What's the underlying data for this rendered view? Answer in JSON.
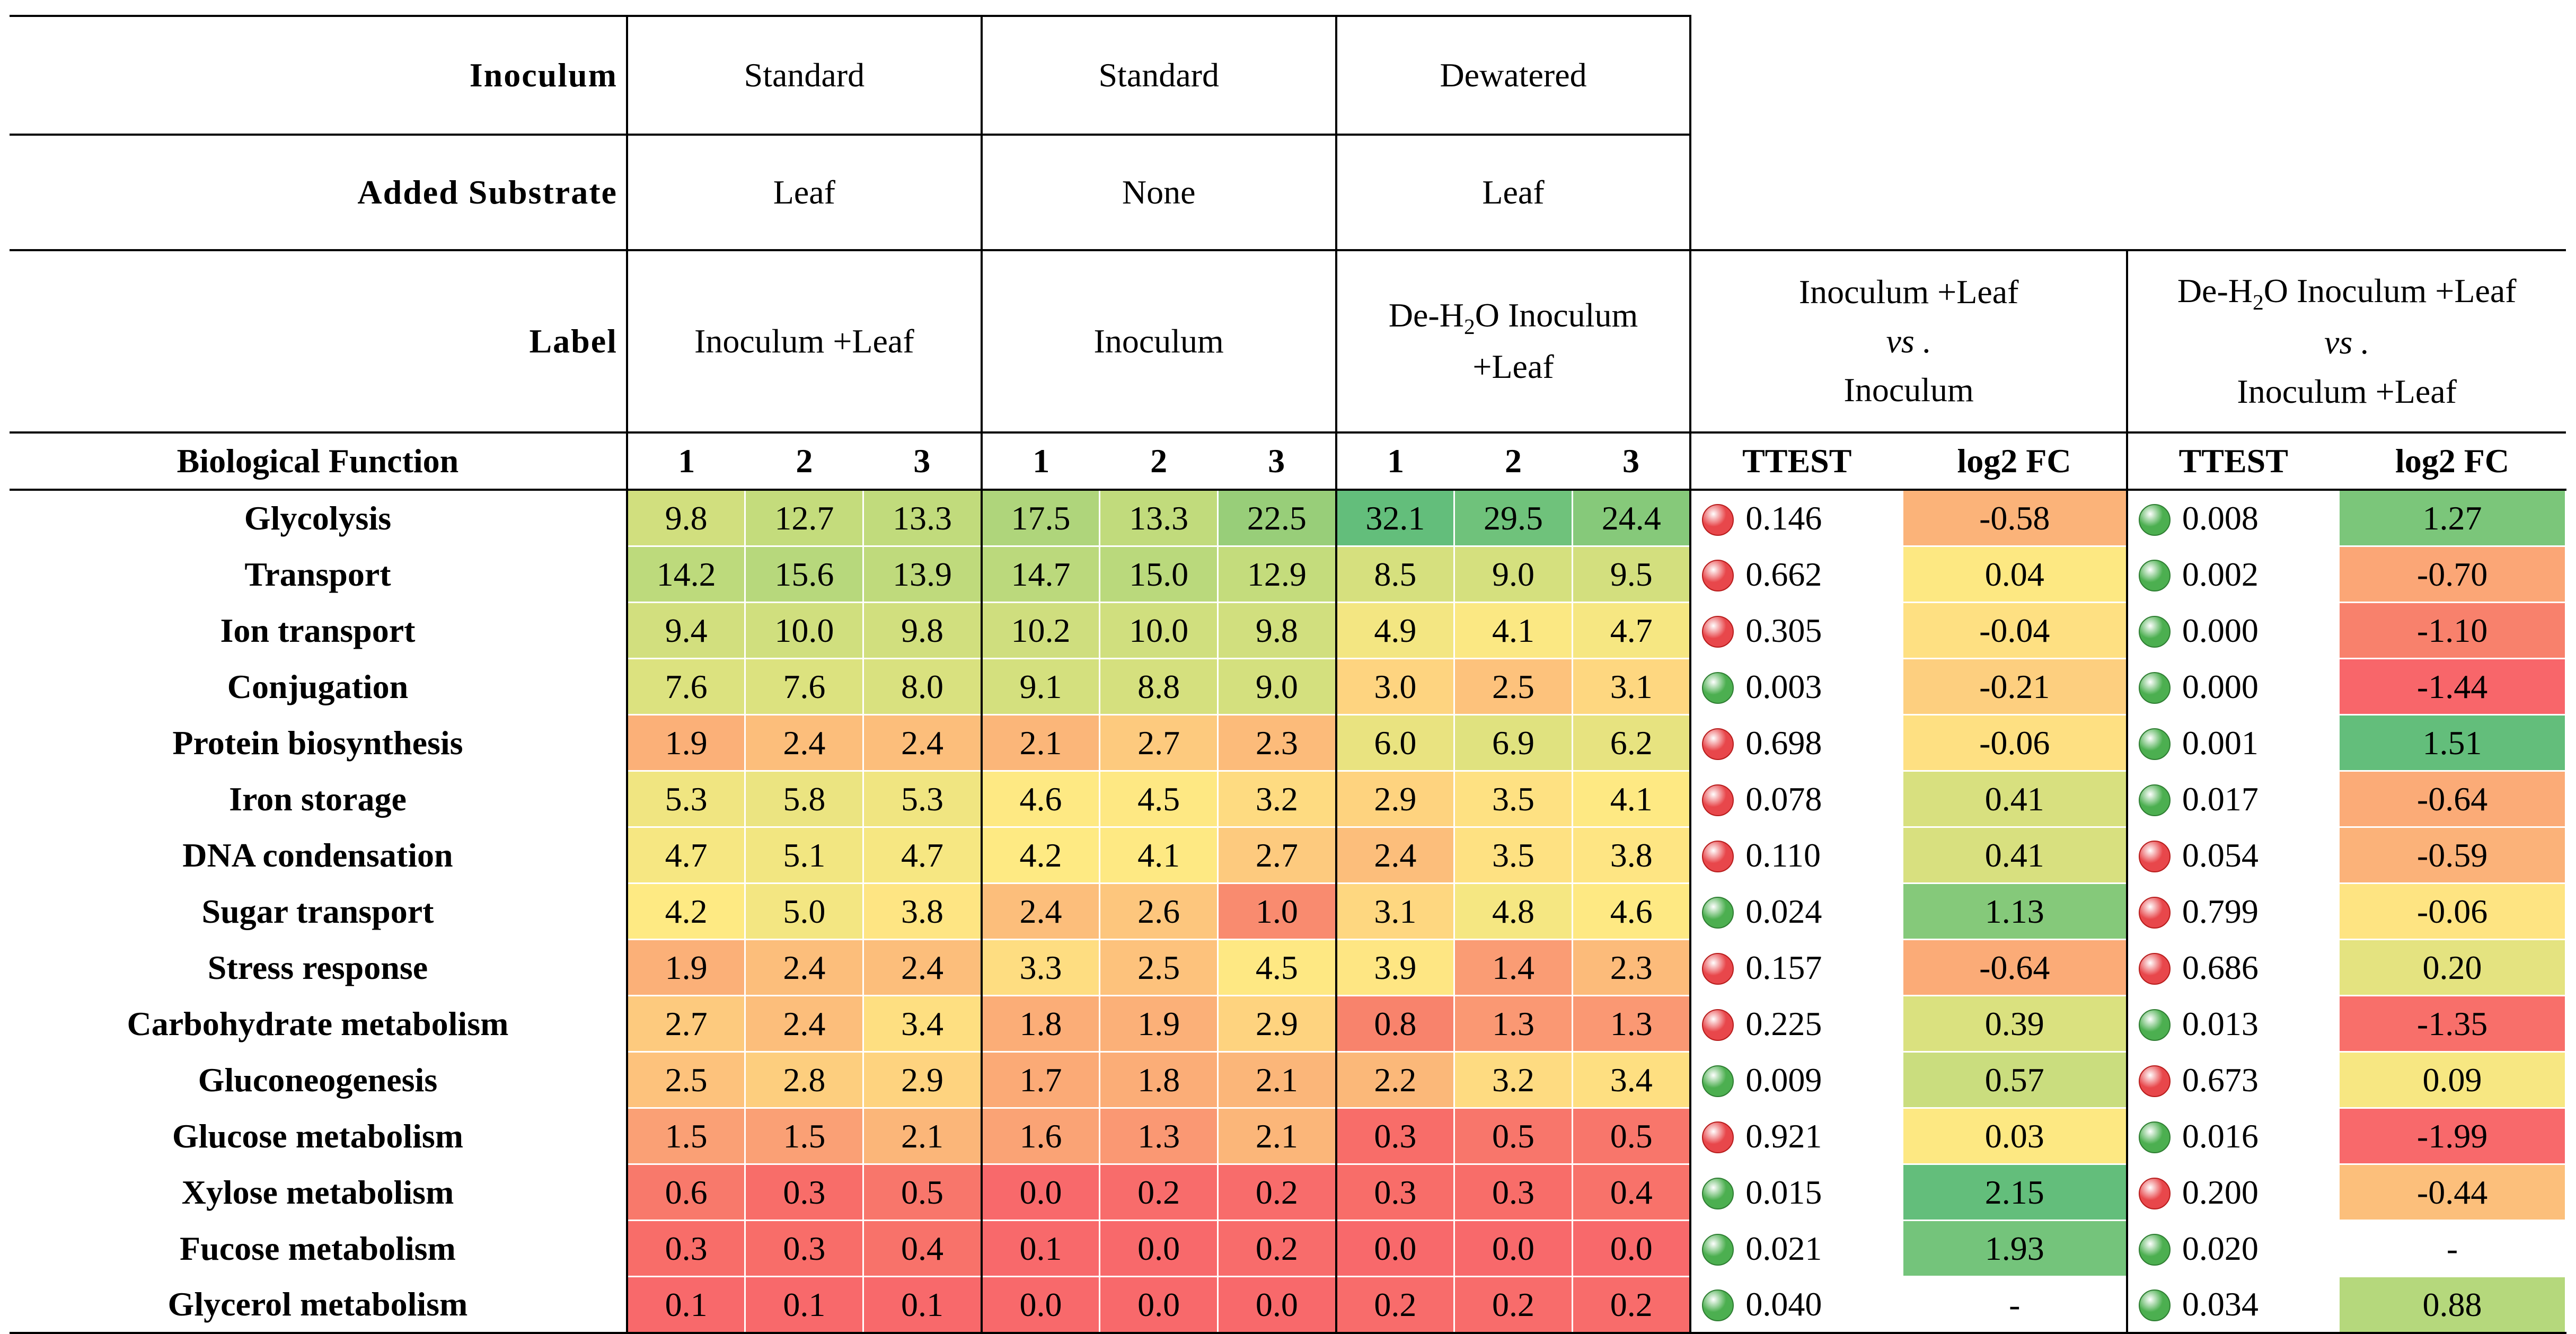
{
  "header": {
    "inoculum_label": "Inoculum",
    "inoculum": [
      "Standard",
      "Standard",
      "Dewatered"
    ],
    "substrate_label": "Added Substrate",
    "substrate": [
      "Leaf",
      "None",
      "Leaf"
    ],
    "label_label": "Label",
    "labels": [
      "Inoculum +Leaf",
      "Inoculum",
      "De-H2O Inoculum +Leaf"
    ],
    "comp1": {
      "line1": "Inoculum +Leaf",
      "vs": "vs .",
      "line2": "Inoculum"
    },
    "comp2": {
      "line1": "De-H2O Inoculum +Leaf",
      "vs": "vs .",
      "line2": "Inoculum +Leaf"
    },
    "biofunc_label": "Biological Function",
    "reps": [
      "1",
      "2",
      "3"
    ],
    "ttest_label": "TTEST",
    "log2fc_label": "log2 FC"
  },
  "colors": {
    "green_dot": "#4caf50",
    "red_dot": "#e8474b"
  },
  "rows": [
    {
      "name": "Glycolysis",
      "values": [
        "9.8",
        "12.7",
        "13.3",
        "17.5",
        "13.3",
        "22.5",
        "32.1",
        "29.5",
        "24.4"
      ],
      "colors": [
        "#d1df7e",
        "#c4dc7c",
        "#c1db7c",
        "#afd57b",
        "#c1db7c",
        "#98ce79",
        "#63be7b",
        "#6fc27b",
        "#86c97a"
      ],
      "t1": "0.146",
      "s1": "red",
      "fc1": "-0.58",
      "fc1c": "#fbb379",
      "t2": "0.008",
      "s2": "green",
      "fc2": "1.27",
      "fc2c": "#7bc67a"
    },
    {
      "name": "Transport",
      "values": [
        "14.2",
        "15.6",
        "13.9",
        "14.7",
        "15.0",
        "12.9",
        "8.5",
        "9.0",
        "9.5"
      ],
      "colors": [
        "#bdda7c",
        "#b7d87c",
        "#bfda7c",
        "#bbd97c",
        "#bad97c",
        "#c4dc7c",
        "#d6e07e",
        "#d5e07e",
        "#d3df7e"
      ],
      "t1": "0.662",
      "s1": "red",
      "fc1": "0.04",
      "fc1c": "#fde882",
      "t2": "0.002",
      "s2": "green",
      "fc2": "-0.70",
      "fc2c": "#fba676"
    },
    {
      "name": "Ion transport",
      "values": [
        "9.4",
        "10.0",
        "9.8",
        "10.2",
        "10.0",
        "9.8",
        "4.9",
        "4.1",
        "4.7"
      ],
      "colors": [
        "#d2df7e",
        "#d0df7e",
        "#d1df7e",
        "#cfde7e",
        "#d0df7e",
        "#d1df7e",
        "#f3e682",
        "#fbe883",
        "#f6e782"
      ],
      "t1": "0.305",
      "s1": "red",
      "fc1": "-0.04",
      "fc1c": "#fee082",
      "t2": "0.000",
      "s2": "green",
      "fc2": "-1.10",
      "fc2c": "#f8816c"
    },
    {
      "name": "Conjugation",
      "values": [
        "7.6",
        "7.6",
        "8.0",
        "9.1",
        "8.8",
        "9.0",
        "3.0",
        "2.5",
        "3.1"
      ],
      "colors": [
        "#dce27f",
        "#dce27f",
        "#d9e17f",
        "#d4e07e",
        "#d5e07e",
        "#d4e07e",
        "#fed480",
        "#fdc27c",
        "#fed780"
      ],
      "t1": "0.003",
      "s1": "green",
      "fc1": "-0.21",
      "fc1c": "#fdcf7f",
      "t2": "0.000",
      "s2": "green",
      "fc2": "-1.44",
      "fc2c": "#f8666a"
    },
    {
      "name": "Protein biosynthesis",
      "values": [
        "1.9",
        "2.4",
        "2.4",
        "2.1",
        "2.7",
        "2.3",
        "6.0",
        "6.9",
        "6.2"
      ],
      "colors": [
        "#fbb078",
        "#fcbe7b",
        "#fcbe7b",
        "#fbb679",
        "#fdca7e",
        "#fcbb7a",
        "#e9e380",
        "#e0e27f",
        "#e7e380"
      ],
      "t1": "0.698",
      "s1": "red",
      "fc1": "-0.06",
      "fc1c": "#fee082",
      "t2": "0.001",
      "s2": "green",
      "fc2": "1.51",
      "fc2c": "#63be7b"
    },
    {
      "name": "Iron storage",
      "values": [
        "5.3",
        "5.8",
        "5.3",
        "4.6",
        "4.5",
        "3.2",
        "2.9",
        "3.5",
        "4.1"
      ],
      "colors": [
        "#f0e581",
        "#ebe481",
        "#f0e581",
        "#fee983",
        "#fee883",
        "#fedb81",
        "#fed37f",
        "#fee182",
        "#fee983"
      ],
      "t1": "0.078",
      "s1": "red",
      "fc1": "0.41",
      "fc1c": "#d8e07f",
      "t2": "0.017",
      "s2": "green",
      "fc2": "-0.64",
      "fc2c": "#fbab77"
    },
    {
      "name": "DNA condensation",
      "values": [
        "4.7",
        "5.1",
        "4.7",
        "4.2",
        "4.1",
        "2.7",
        "2.4",
        "3.5",
        "3.8"
      ],
      "colors": [
        "#f6e782",
        "#f2e681",
        "#f6e782",
        "#feea83",
        "#fee983",
        "#fdca7e",
        "#fcbe7b",
        "#fee182",
        "#fee583"
      ],
      "t1": "0.110",
      "s1": "red",
      "fc1": "0.41",
      "fc1c": "#d8e07f",
      "t2": "0.054",
      "s2": "red",
      "fc2": "-0.59",
      "fc2c": "#fbb279"
    },
    {
      "name": "Sugar transport",
      "values": [
        "4.2",
        "5.0",
        "3.8",
        "2.4",
        "2.6",
        "1.0",
        "3.1",
        "4.8",
        "4.6"
      ],
      "colors": [
        "#feea83",
        "#f3e682",
        "#fee583",
        "#fcbe7b",
        "#fdc67d",
        "#f98b6f",
        "#fed780",
        "#f5e782",
        "#fee983"
      ],
      "t1": "0.024",
      "s1": "green",
      "fc1": "1.13",
      "fc1c": "#85c97a",
      "t2": "0.799",
      "s2": "red",
      "fc2": "-0.06",
      "fc2c": "#fee482"
    },
    {
      "name": "Stress response",
      "values": [
        "1.9",
        "2.4",
        "2.4",
        "3.3",
        "2.5",
        "4.5",
        "3.9",
        "1.4",
        "2.3"
      ],
      "colors": [
        "#fbb078",
        "#fcbe7b",
        "#fcbe7b",
        "#fedd81",
        "#fdc27c",
        "#fee883",
        "#fee683",
        "#fa9c74",
        "#fcbb7a"
      ],
      "t1": "0.157",
      "s1": "red",
      "fc1": "-0.64",
      "fc1c": "#fbab77",
      "t2": "0.686",
      "s2": "red",
      "fc2": "0.20",
      "fc2c": "#e4e380"
    },
    {
      "name": "Carbohydrate metabolism",
      "values": [
        "2.7",
        "2.4",
        "3.4",
        "1.8",
        "1.9",
        "2.9",
        "0.8",
        "1.3",
        "1.3"
      ],
      "colors": [
        "#fdca7e",
        "#fcbe7b",
        "#fedf81",
        "#fbad77",
        "#fbb078",
        "#fed37f",
        "#f8836c",
        "#fa9873",
        "#fa9873"
      ],
      "t1": "0.225",
      "s1": "red",
      "fc1": "0.39",
      "fc1c": "#dae17f",
      "t2": "0.013",
      "s2": "green",
      "fc2": "-1.35",
      "fc2c": "#f86f6a"
    },
    {
      "name": "Gluconeogenesis",
      "values": [
        "2.5",
        "2.8",
        "2.9",
        "1.7",
        "1.8",
        "2.1",
        "2.2",
        "3.2",
        "3.4"
      ],
      "colors": [
        "#fdc27c",
        "#fdce7e",
        "#fed37f",
        "#fbaa76",
        "#fbad77",
        "#fbb679",
        "#fbb879",
        "#fedb81",
        "#fedf81"
      ],
      "t1": "0.009",
      "s1": "green",
      "fc1": "0.57",
      "fc1c": "#cadd7e",
      "t2": "0.673",
      "s2": "red",
      "fc2": "0.09",
      "fc2c": "#f7e782"
    },
    {
      "name": "Glucose metabolism",
      "values": [
        "1.5",
        "1.5",
        "2.1",
        "1.6",
        "1.3",
        "2.1",
        "0.3",
        "0.5",
        "0.5"
      ],
      "colors": [
        "#faa075",
        "#faa075",
        "#fbb679",
        "#faa375",
        "#fa9873",
        "#fbb679",
        "#f86d69",
        "#f8766b",
        "#f8766b"
      ],
      "t1": "0.921",
      "s1": "red",
      "fc1": "0.03",
      "fc1c": "#fde882",
      "t2": "0.016",
      "s2": "green",
      "fc2": "-1.99",
      "fc2c": "#f8696b"
    },
    {
      "name": "Xylose metabolism",
      "values": [
        "0.6",
        "0.3",
        "0.5",
        "0.0",
        "0.2",
        "0.2",
        "0.3",
        "0.3",
        "0.4"
      ],
      "colors": [
        "#f8796b",
        "#f86d69",
        "#f8766b",
        "#f8696b",
        "#f86c6b",
        "#f86c6b",
        "#f86d69",
        "#f86d69",
        "#f8726a"
      ],
      "t1": "0.015",
      "s1": "green",
      "fc1": "2.15",
      "fc1c": "#63be7b",
      "t2": "0.200",
      "s2": "red",
      "fc2": "-0.44",
      "fc2c": "#fcbf7b"
    },
    {
      "name": "Fucose metabolism",
      "values": [
        "0.3",
        "0.3",
        "0.4",
        "0.1",
        "0.0",
        "0.2",
        "0.0",
        "0.0",
        "0.0"
      ],
      "colors": [
        "#f86d69",
        "#f86d69",
        "#f8726a",
        "#f8696b",
        "#f8696b",
        "#f86c6b",
        "#f8696b",
        "#f8696b",
        "#f8696b"
      ],
      "t1": "0.021",
      "s1": "green",
      "fc1": "1.93",
      "fc1c": "#74c47b",
      "t2": "0.020",
      "s2": "green",
      "fc2": "-",
      "fc2c": "#ffffff"
    },
    {
      "name": "Glycerol metabolism",
      "values": [
        "0.1",
        "0.1",
        "0.1",
        "0.0",
        "0.0",
        "0.0",
        "0.2",
        "0.2",
        "0.2"
      ],
      "colors": [
        "#f8696b",
        "#f8696b",
        "#f8696b",
        "#f8696b",
        "#f8696b",
        "#f8696b",
        "#f86c6b",
        "#f86c6b",
        "#f86c6b"
      ],
      "t1": "0.040",
      "s1": "green",
      "fc1": "-",
      "fc1c": "#ffffff",
      "t2": "0.034",
      "s2": "green",
      "fc2": "0.88",
      "fc2c": "#b5d87c"
    }
  ]
}
